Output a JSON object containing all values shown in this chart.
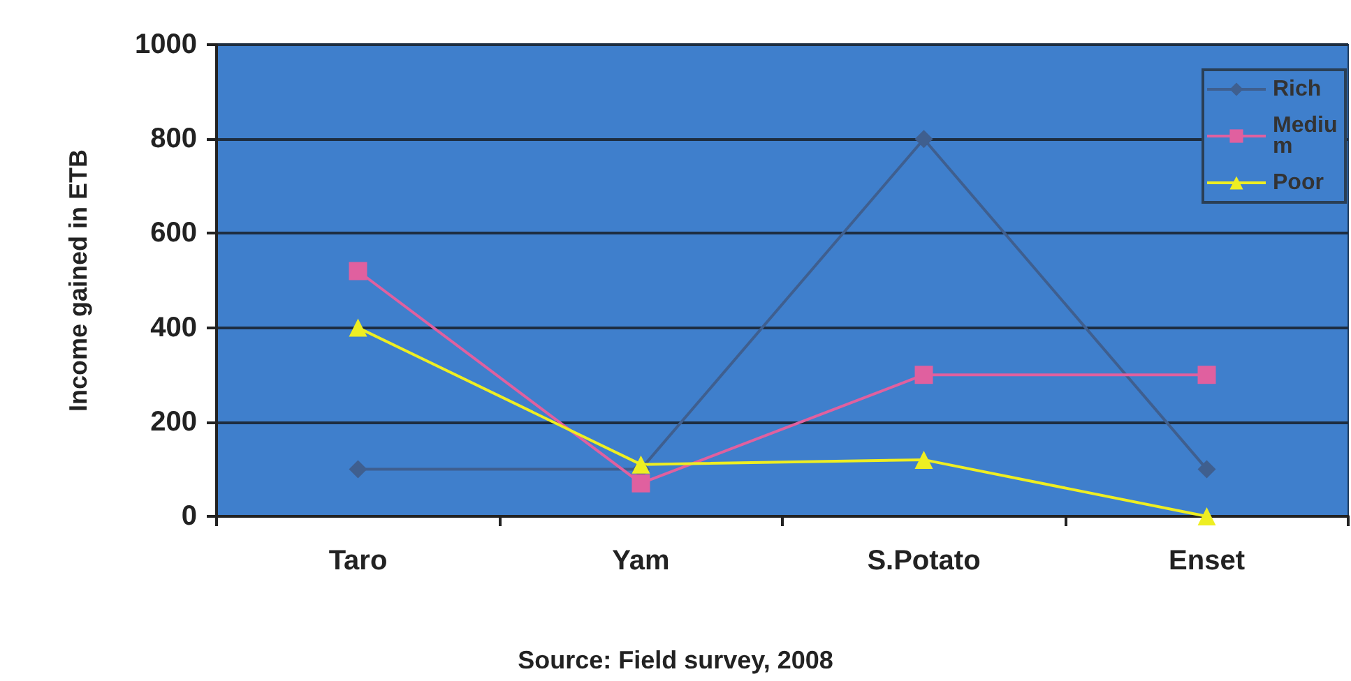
{
  "chart_data": {
    "type": "line",
    "ylabel": "Income gained in ETB",
    "categories": [
      "Taro",
      "Yam",
      "S.Potato",
      "Enset"
    ],
    "series": [
      {
        "name": "Rich",
        "color": "#3f5f8f",
        "marker": "diamond",
        "values": [
          100,
          100,
          800,
          100
        ]
      },
      {
        "name": "Medium",
        "color": "#e0609f",
        "marker": "square",
        "values": [
          520,
          70,
          300,
          300
        ]
      },
      {
        "name": "Poor",
        "color": "#eeee22",
        "marker": "triangle",
        "values": [
          400,
          110,
          120,
          0
        ]
      }
    ],
    "ylim": [
      0,
      1000
    ],
    "yticks": [
      0,
      200,
      400,
      600,
      800,
      1000
    ],
    "grid": "y",
    "legend": "top right",
    "annotations": [
      "Source: Field survey, 2008"
    ]
  }
}
